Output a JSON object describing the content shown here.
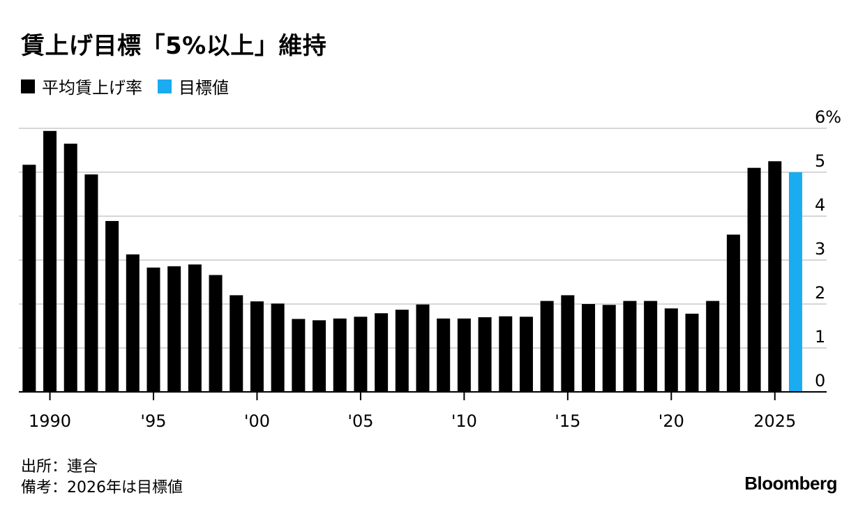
{
  "title": "賃上げ目標「5%以上」維持",
  "legend": [
    {
      "label": "平均賃上げ率",
      "color": "#000000"
    },
    {
      "label": "目標値",
      "color": "#1aabf0"
    }
  ],
  "footer": {
    "source": "出所：連合",
    "note": "備考：2026年は目標値"
  },
  "brand": "Bloomberg",
  "chart_data": {
    "type": "bar",
    "x": [
      1989,
      1990,
      1991,
      1992,
      1993,
      1994,
      1995,
      1996,
      1997,
      1998,
      1999,
      2000,
      2001,
      2002,
      2003,
      2004,
      2005,
      2006,
      2007,
      2008,
      2009,
      2010,
      2011,
      2012,
      2013,
      2014,
      2015,
      2016,
      2017,
      2018,
      2019,
      2020,
      2021,
      2022,
      2023,
      2024,
      2025,
      2026
    ],
    "series": [
      {
        "name": "平均賃上げ率",
        "color": "#000000",
        "values": [
          5.17,
          5.94,
          5.65,
          4.95,
          3.89,
          3.13,
          2.83,
          2.86,
          2.9,
          2.66,
          2.2,
          2.06,
          2.01,
          1.66,
          1.63,
          1.67,
          1.71,
          1.79,
          1.87,
          1.99,
          1.67,
          1.67,
          1.7,
          1.72,
          1.71,
          2.07,
          2.2,
          2.0,
          1.98,
          2.07,
          2.07,
          1.9,
          1.78,
          2.07,
          3.58,
          5.1,
          5.25,
          null
        ]
      },
      {
        "name": "目標値",
        "color": "#1aabf0",
        "values": [
          null,
          null,
          null,
          null,
          null,
          null,
          null,
          null,
          null,
          null,
          null,
          null,
          null,
          null,
          null,
          null,
          null,
          null,
          null,
          null,
          null,
          null,
          null,
          null,
          null,
          null,
          null,
          null,
          null,
          null,
          null,
          null,
          null,
          null,
          null,
          null,
          null,
          5.0
        ]
      }
    ],
    "x_ticks": [
      {
        "value": 1990,
        "label": "1990"
      },
      {
        "value": 1995,
        "label": "'95"
      },
      {
        "value": 2000,
        "label": "'00"
      },
      {
        "value": 2005,
        "label": "'05"
      },
      {
        "value": 2010,
        "label": "'10"
      },
      {
        "value": 2015,
        "label": "'15"
      },
      {
        "value": 2020,
        "label": "'20"
      },
      {
        "value": 2025,
        "label": "2025"
      }
    ],
    "y_ticks": [
      {
        "value": 0,
        "label": "0"
      },
      {
        "value": 1,
        "label": "1"
      },
      {
        "value": 2,
        "label": "2"
      },
      {
        "value": 3,
        "label": "3"
      },
      {
        "value": 4,
        "label": "4"
      },
      {
        "value": 5,
        "label": "5"
      },
      {
        "value": 6,
        "label": "6%"
      }
    ],
    "ylim": [
      0,
      6
    ],
    "xlim": [
      1988.5,
      2027.5
    ],
    "grid": true
  }
}
